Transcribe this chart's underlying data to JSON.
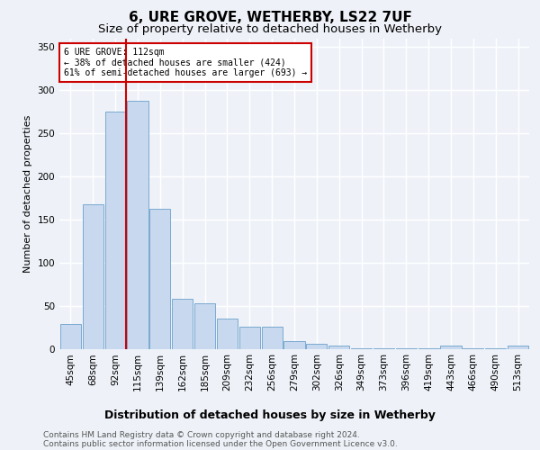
{
  "title": "6, URE GROVE, WETHERBY, LS22 7UF",
  "subtitle": "Size of property relative to detached houses in Wetherby",
  "xlabel": "Distribution of detached houses by size in Wetherby",
  "ylabel": "Number of detached properties",
  "categories": [
    "45sqm",
    "68sqm",
    "92sqm",
    "115sqm",
    "139sqm",
    "162sqm",
    "185sqm",
    "209sqm",
    "232sqm",
    "256sqm",
    "279sqm",
    "302sqm",
    "326sqm",
    "349sqm",
    "373sqm",
    "396sqm",
    "419sqm",
    "443sqm",
    "466sqm",
    "490sqm",
    "513sqm"
  ],
  "values": [
    29,
    167,
    275,
    288,
    162,
    58,
    53,
    35,
    26,
    26,
    9,
    6,
    4,
    1,
    1,
    1,
    1,
    4,
    1,
    1,
    4
  ],
  "bar_color": "#c8d8ee",
  "bar_edge_color": "#7aaad0",
  "vline_color": "#cc0000",
  "annotation_text": "6 URE GROVE: 112sqm\n← 38% of detached houses are smaller (424)\n61% of semi-detached houses are larger (693) →",
  "annotation_box_color": "white",
  "annotation_box_edge": "#cc0000",
  "ylim": [
    0,
    360
  ],
  "yticks": [
    0,
    50,
    100,
    150,
    200,
    250,
    300,
    350
  ],
  "footer_line1": "Contains HM Land Registry data © Crown copyright and database right 2024.",
  "footer_line2": "Contains public sector information licensed under the Open Government Licence v3.0.",
  "background_color": "#eef2f8",
  "plot_bg_color": "#eef2f8",
  "grid_color": "white",
  "title_fontsize": 11,
  "subtitle_fontsize": 9.5,
  "ylabel_fontsize": 8,
  "xlabel_fontsize": 9,
  "tick_fontsize": 7.5,
  "footer_fontsize": 6.5
}
